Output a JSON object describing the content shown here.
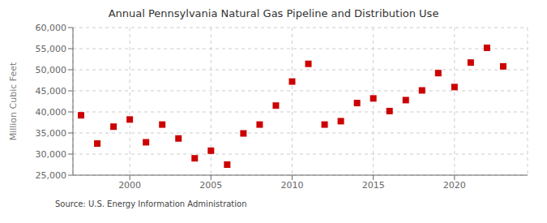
{
  "chart_data": {
    "type": "scatter",
    "title": "Annual Pennsylvania Natural Gas Pipeline and Distribution Use",
    "ylabel": "Million Cubic Feet",
    "annotation": "Source: U.S. Energy Information Administration",
    "x": [
      1997,
      1998,
      1999,
      2000,
      2001,
      2002,
      2003,
      2004,
      2005,
      2006,
      2007,
      2008,
      2009,
      2010,
      2011,
      2012,
      2013,
      2014,
      2015,
      2016,
      2017,
      2018,
      2019,
      2020,
      2021,
      2022,
      2023
    ],
    "values": [
      39200,
      32500,
      36500,
      38200,
      32800,
      37000,
      33700,
      29000,
      30800,
      27500,
      34900,
      37000,
      41500,
      47200,
      51400,
      37000,
      37800,
      42100,
      43200,
      40200,
      42800,
      45100,
      49200,
      45900,
      51700,
      55200,
      50800
    ],
    "color": "#cc0000",
    "marker": "square",
    "xlim": [
      1996.5,
      2024.5
    ],
    "xticks": [
      2000,
      2005,
      2010,
      2015,
      2020
    ],
    "ylim": [
      25000,
      60000
    ],
    "yticks": [
      {
        "value": 25000,
        "label": "25,000"
      },
      {
        "value": 30000,
        "label": "30,000"
      },
      {
        "value": 35000,
        "label": "35,000"
      },
      {
        "value": 40000,
        "label": "40,000"
      },
      {
        "value": 45000,
        "label": "45,000"
      },
      {
        "value": 50000,
        "label": "50,000"
      },
      {
        "value": 55000,
        "label": "55,000"
      },
      {
        "value": 60000,
        "label": "60,000"
      }
    ],
    "grid": true
  }
}
